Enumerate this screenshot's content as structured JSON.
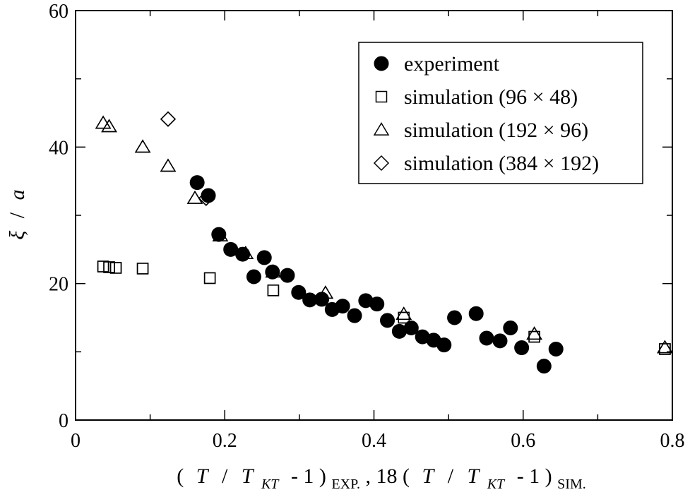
{
  "chart_data": {
    "type": "scatter",
    "title": "",
    "xlabel": {
      "parts": [
        "(",
        "T",
        "/",
        "T",
        "KT",
        "- 1 )",
        "EXP.",
        ",  18 (",
        "T",
        "/",
        "T",
        "KT",
        "- 1 )",
        "SIM."
      ]
    },
    "ylabel": {
      "symbol": "ξ",
      "slash": "/",
      "unit": "a"
    },
    "xlim": [
      0,
      0.8
    ],
    "ylim": [
      0,
      60
    ],
    "x_ticks": [
      0,
      0.2,
      0.4,
      0.6,
      0.8
    ],
    "x_tick_labels": [
      "0",
      "0.2",
      "0.4",
      "0.6",
      "0.8"
    ],
    "y_ticks": [
      0,
      20,
      40,
      60
    ],
    "y_tick_labels": [
      "0",
      "20",
      "40",
      "60"
    ],
    "legend_position": "top-right",
    "series": [
      {
        "name": "experiment",
        "marker": "filled-circle",
        "points": [
          [
            0.163,
            34.8
          ],
          [
            0.178,
            32.9
          ],
          [
            0.192,
            27.2
          ],
          [
            0.208,
            25.0
          ],
          [
            0.224,
            24.3
          ],
          [
            0.239,
            21.0
          ],
          [
            0.253,
            23.8
          ],
          [
            0.264,
            21.7
          ],
          [
            0.284,
            21.2
          ],
          [
            0.299,
            18.7
          ],
          [
            0.314,
            17.6
          ],
          [
            0.33,
            17.7
          ],
          [
            0.344,
            16.2
          ],
          [
            0.358,
            16.7
          ],
          [
            0.374,
            15.3
          ],
          [
            0.389,
            17.5
          ],
          [
            0.404,
            17.0
          ],
          [
            0.418,
            14.6
          ],
          [
            0.434,
            13.0
          ],
          [
            0.45,
            13.5
          ],
          [
            0.465,
            12.2
          ],
          [
            0.48,
            11.7
          ],
          [
            0.494,
            11.0
          ],
          [
            0.508,
            15.0
          ],
          [
            0.537,
            15.6
          ],
          [
            0.551,
            12.0
          ],
          [
            0.569,
            11.6
          ],
          [
            0.583,
            13.5
          ],
          [
            0.598,
            10.6
          ],
          [
            0.628,
            7.9
          ],
          [
            0.644,
            10.4
          ]
        ]
      },
      {
        "name": "simulation (96 × 48)",
        "marker": "open-square",
        "points": [
          [
            0.037,
            22.5
          ],
          [
            0.045,
            22.4
          ],
          [
            0.054,
            22.3
          ],
          [
            0.09,
            22.2
          ],
          [
            0.18,
            20.8
          ],
          [
            0.265,
            19.0
          ],
          [
            0.44,
            15.0
          ],
          [
            0.615,
            12.2
          ],
          [
            0.79,
            10.4
          ]
        ]
      },
      {
        "name": "simulation (192 × 96)",
        "marker": "open-triangle",
        "points": [
          [
            0.037,
            43.5
          ],
          [
            0.045,
            43.0
          ],
          [
            0.09,
            40.0
          ],
          [
            0.124,
            37.2
          ],
          [
            0.16,
            32.5
          ],
          [
            0.194,
            27.0
          ],
          [
            0.228,
            24.4
          ],
          [
            0.265,
            21.7
          ],
          [
            0.335,
            18.6
          ],
          [
            0.44,
            15.5
          ],
          [
            0.615,
            12.6
          ],
          [
            0.79,
            10.6
          ]
        ]
      },
      {
        "name": "simulation (384 × 192)",
        "marker": "open-diamond",
        "points": [
          [
            0.124,
            44.1
          ],
          [
            0.175,
            32.5
          ]
        ]
      }
    ]
  }
}
